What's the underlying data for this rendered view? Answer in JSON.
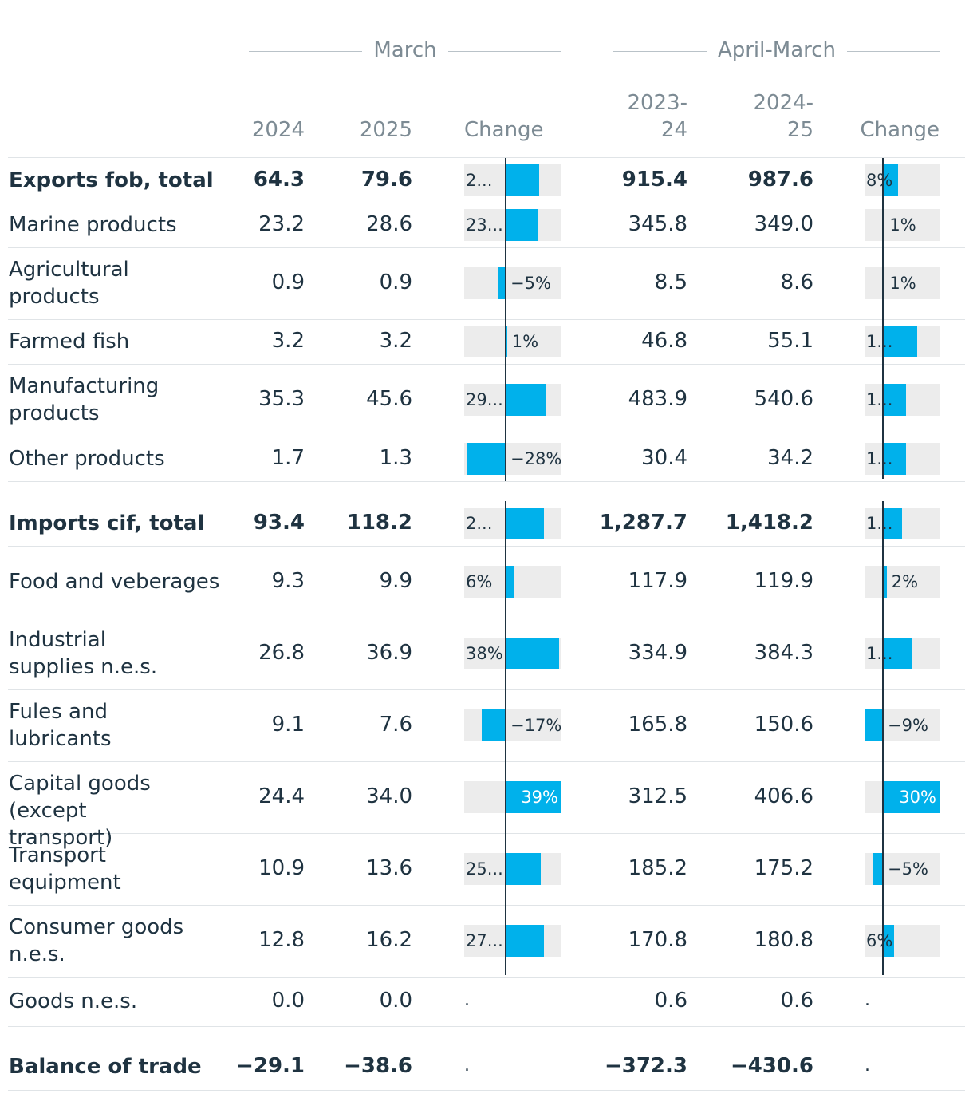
{
  "groups": {
    "march": "March",
    "april_march": "April-March"
  },
  "columns": {
    "c2024": "2024",
    "c2025": "2025",
    "change": "Change",
    "c2023_24": "2023-\n24",
    "c2024_25": "2024-\n25",
    "change2": "Change"
  },
  "colors": {
    "bar": "#00b1eb",
    "track": "#ececec",
    "text": "#1f3341",
    "muted": "#7d8b94"
  },
  "chart_data": {
    "type": "table",
    "title": "",
    "unit_note": "",
    "rows": [
      {
        "name": "Exports fob, total",
        "bold": true,
        "v2024": "64.3",
        "v2025": "79.6",
        "chg_m_label": "2...",
        "v2023_24": "915.4",
        "v2024_25": "987.6",
        "chg_am_label": "8%",
        "chg_m": 24,
        "chg_am": 8
      },
      {
        "name": "Marine products",
        "bold": false,
        "v2024": "23.2",
        "v2025": "28.6",
        "chg_m_label": "23...",
        "v2023_24": "345.8",
        "v2024_25": "349.0",
        "chg_am_label": "1%",
        "chg_m": 23,
        "chg_am": 1
      },
      {
        "name": "Agricultural products",
        "bold": false,
        "v2024": "0.9",
        "v2025": "0.9",
        "chg_m_label": "−5%",
        "v2023_24": "8.5",
        "v2024_25": "8.6",
        "chg_am_label": "1%",
        "chg_m": -5,
        "chg_am": 1
      },
      {
        "name": "Farmed fish",
        "bold": false,
        "v2024": "3.2",
        "v2025": "3.2",
        "chg_m_label": "1%",
        "v2023_24": "46.8",
        "v2024_25": "55.1",
        "chg_am_label": "1...",
        "chg_m": 1,
        "chg_am": 18
      },
      {
        "name": "Manufacturing products",
        "bold": false,
        "v2024": "35.3",
        "v2025": "45.6",
        "chg_m_label": "29...",
        "v2023_24": "483.9",
        "v2024_25": "540.6",
        "chg_am_label": "1...",
        "chg_m": 29,
        "chg_am": 12
      },
      {
        "name": "Other products",
        "bold": false,
        "v2024": "1.7",
        "v2025": "1.3",
        "chg_m_label": "−28%",
        "v2023_24": "30.4",
        "v2024_25": "34.2",
        "chg_am_label": "1...",
        "chg_m": -28,
        "chg_am": 12
      },
      {
        "name": "Imports cif, total",
        "bold": true,
        "v2024": "93.4",
        "v2025": "118.2",
        "chg_m_label": "2...",
        "v2023_24": "1,287.7",
        "v2024_25": "1,418.2",
        "chg_am_label": "1...",
        "chg_m": 27,
        "chg_am": 10
      },
      {
        "name": "Food and veberages",
        "bold": false,
        "v2024": "9.3",
        "v2025": "9.9",
        "chg_m_label": "6%",
        "v2023_24": "117.9",
        "v2024_25": "119.9",
        "chg_am_label": "2%",
        "chg_m": 6,
        "chg_am": 2
      },
      {
        "name": "Industrial supplies n.e.s.",
        "bold": false,
        "v2024": "26.8",
        "v2025": "36.9",
        "chg_m_label": "38%",
        "v2023_24": "334.9",
        "v2024_25": "384.3",
        "chg_am_label": "1...",
        "chg_m": 38,
        "chg_am": 15
      },
      {
        "name": "Fules and lubricants",
        "bold": false,
        "v2024": "9.1",
        "v2025": "7.6",
        "chg_m_label": "−17%",
        "v2023_24": "165.8",
        "v2024_25": "150.6",
        "chg_am_label": "−9%",
        "chg_m": -17,
        "chg_am": -9
      },
      {
        "name": "Capital goods (except transport)",
        "bold": false,
        "v2024": "24.4",
        "v2025": "34.0",
        "chg_m_label": "39%",
        "v2023_24": "312.5",
        "v2024_25": "406.6",
        "chg_am_label": "30%",
        "chg_m": 39,
        "chg_am": 30
      },
      {
        "name": "Transport equipment",
        "bold": false,
        "v2024": "10.9",
        "v2025": "13.6",
        "chg_m_label": "25...",
        "v2023_24": "185.2",
        "v2024_25": "175.2",
        "chg_am_label": "−5%",
        "chg_m": 25,
        "chg_am": -5
      },
      {
        "name": "Consumer goods n.e.s.",
        "bold": false,
        "v2024": "12.8",
        "v2025": "16.2",
        "chg_m_label": "27...",
        "v2023_24": "170.8",
        "v2024_25": "180.8",
        "chg_am_label": "6%",
        "chg_m": 27,
        "chg_am": 6
      },
      {
        "name": "Goods n.e.s.",
        "bold": false,
        "v2024": "0.0",
        "v2025": "0.0",
        "chg_m_label": ".",
        "v2023_24": "0.6",
        "v2024_25": "0.6",
        "chg_am_label": ".",
        "chg_m": null,
        "chg_am": null
      },
      {
        "name": "Balance of trade",
        "bold": true,
        "v2024": "−29.1",
        "v2025": "−38.6",
        "chg_m_label": ".",
        "v2023_24": "−372.3",
        "v2024_25": "−430.6",
        "chg_am_label": ".",
        "chg_m": null,
        "chg_am": null
      }
    ]
  }
}
